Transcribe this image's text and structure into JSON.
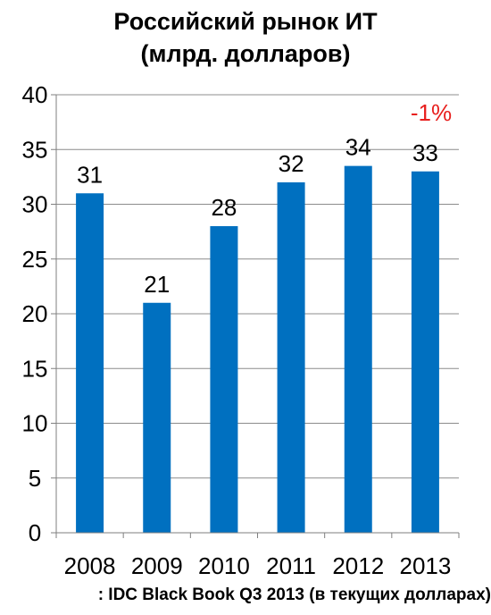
{
  "chart_data": {
    "type": "bar",
    "title_lines": [
      "Российский рынок ИТ",
      "(млрд. долларов)"
    ],
    "categories": [
      "2008",
      "2009",
      "2010",
      "2011",
      "2012",
      "2013"
    ],
    "values": [
      31,
      21,
      28,
      32,
      33.5,
      33
    ],
    "data_labels": [
      "31",
      "21",
      "28",
      "32",
      "34",
      "33"
    ],
    "annotation": "-1%",
    "annotation_color": "#e8201e",
    "bar_color": "#0070c0",
    "ylim": [
      0,
      40
    ],
    "yticks": [
      0,
      5,
      10,
      15,
      20,
      25,
      30,
      35,
      40
    ],
    "grid": true,
    "xlabel": "",
    "ylabel": ""
  },
  "footer": {
    "source": ": IDC Black Book Q3 2013 (в текущих долларах)"
  }
}
